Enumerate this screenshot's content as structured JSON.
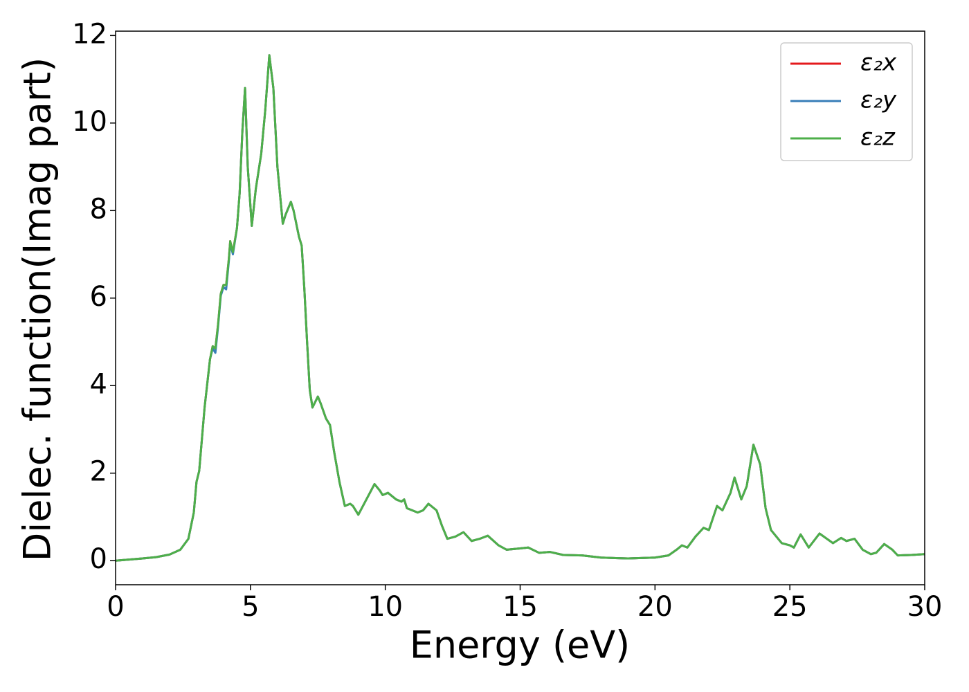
{
  "chart_data": {
    "type": "line",
    "xlabel": "Energy (eV)",
    "ylabel": "Dielec. function(Imag part)",
    "xlim": [
      0,
      30
    ],
    "xticks": [
      0,
      5,
      10,
      15,
      20,
      25,
      30
    ],
    "ylim": [
      -0.55,
      12.1
    ],
    "yticks": [
      0,
      2,
      4,
      6,
      8,
      10,
      12
    ],
    "grid": false,
    "legend": "upper right",
    "x": [
      0,
      1,
      1.5,
      2,
      2.4,
      2.7,
      2.9,
      3.0,
      3.1,
      3.3,
      3.5,
      3.6,
      3.7,
      3.8,
      3.9,
      4.0,
      4.1,
      4.2,
      4.25,
      4.35,
      4.5,
      4.6,
      4.7,
      4.8,
      4.9,
      5.05,
      5.2,
      5.4,
      5.55,
      5.7,
      5.85,
      6.0,
      6.2,
      6.3,
      6.5,
      6.6,
      6.8,
      6.9,
      7.0,
      7.1,
      7.2,
      7.3,
      7.5,
      7.6,
      7.8,
      7.95,
      8.1,
      8.3,
      8.5,
      8.7,
      8.8,
      9.0,
      9.3,
      9.6,
      9.8,
      9.9,
      10.1,
      10.4,
      10.6,
      10.7,
      10.8,
      11.0,
      11.2,
      11.4,
      11.6,
      11.9,
      12.1,
      12.3,
      12.6,
      12.9,
      13.2,
      13.5,
      13.8,
      14.2,
      14.5,
      15.0,
      15.3,
      15.7,
      16.1,
      16.6,
      17.3,
      18,
      19,
      20,
      20.5,
      20.8,
      21.0,
      21.2,
      21.5,
      21.8,
      22.0,
      22.3,
      22.5,
      22.8,
      22.95,
      23.2,
      23.4,
      23.65,
      23.9,
      24.1,
      24.3,
      24.7,
      25.0,
      25.15,
      25.4,
      25.7,
      26.1,
      26.6,
      26.9,
      27.1,
      27.4,
      27.7,
      28.0,
      28.2,
      28.5,
      28.8,
      29.0,
      29.5,
      30
    ],
    "series": [
      {
        "name": "ε₂x",
        "color": "#e41a1c",
        "values": [
          0,
          0.05,
          0.08,
          0.14,
          0.25,
          0.5,
          1.1,
          1.8,
          2.05,
          3.5,
          4.6,
          4.9,
          4.85,
          5.4,
          6.1,
          6.3,
          6.3,
          6.9,
          7.3,
          7.05,
          7.6,
          8.4,
          9.8,
          10.8,
          9.0,
          7.65,
          8.5,
          9.3,
          10.3,
          11.55,
          10.8,
          9.0,
          7.7,
          7.9,
          8.2,
          8.0,
          7.4,
          7.2,
          6.2,
          5.0,
          3.9,
          3.5,
          3.75,
          3.6,
          3.25,
          3.1,
          2.5,
          1.8,
          1.25,
          1.3,
          1.25,
          1.05,
          1.4,
          1.75,
          1.6,
          1.5,
          1.55,
          1.4,
          1.35,
          1.4,
          1.2,
          1.15,
          1.1,
          1.15,
          1.3,
          1.15,
          0.8,
          0.5,
          0.55,
          0.65,
          0.45,
          0.5,
          0.57,
          0.35,
          0.25,
          0.28,
          0.3,
          0.18,
          0.2,
          0.13,
          0.12,
          0.07,
          0.05,
          0.07,
          0.12,
          0.25,
          0.35,
          0.3,
          0.55,
          0.75,
          0.7,
          1.25,
          1.15,
          1.55,
          1.9,
          1.4,
          1.7,
          2.65,
          2.2,
          1.2,
          0.7,
          0.4,
          0.35,
          0.3,
          0.6,
          0.3,
          0.62,
          0.4,
          0.52,
          0.45,
          0.5,
          0.25,
          0.15,
          0.18,
          0.38,
          0.25,
          0.12,
          0.13,
          0.15
        ]
      },
      {
        "name": "ε₂y",
        "color": "#377eb8",
        "values": [
          0,
          0.05,
          0.08,
          0.14,
          0.25,
          0.5,
          1.1,
          1.8,
          2.05,
          3.5,
          4.6,
          4.85,
          4.75,
          5.35,
          6.05,
          6.25,
          6.2,
          6.85,
          7.25,
          7.0,
          7.6,
          8.4,
          9.8,
          10.8,
          9.0,
          7.65,
          8.5,
          9.3,
          10.3,
          11.55,
          10.8,
          9.0,
          7.7,
          7.9,
          8.2,
          8.0,
          7.4,
          7.2,
          6.2,
          5.0,
          3.9,
          3.5,
          3.75,
          3.6,
          3.25,
          3.1,
          2.5,
          1.8,
          1.25,
          1.3,
          1.25,
          1.05,
          1.4,
          1.75,
          1.6,
          1.5,
          1.55,
          1.4,
          1.35,
          1.4,
          1.2,
          1.15,
          1.1,
          1.15,
          1.3,
          1.15,
          0.8,
          0.5,
          0.55,
          0.65,
          0.45,
          0.5,
          0.57,
          0.35,
          0.25,
          0.28,
          0.3,
          0.18,
          0.2,
          0.13,
          0.12,
          0.07,
          0.05,
          0.07,
          0.12,
          0.25,
          0.35,
          0.3,
          0.55,
          0.75,
          0.7,
          1.25,
          1.15,
          1.55,
          1.9,
          1.4,
          1.7,
          2.65,
          2.2,
          1.2,
          0.7,
          0.4,
          0.35,
          0.3,
          0.6,
          0.3,
          0.62,
          0.4,
          0.52,
          0.45,
          0.5,
          0.25,
          0.15,
          0.18,
          0.38,
          0.25,
          0.12,
          0.13,
          0.15
        ]
      },
      {
        "name": "ε₂z",
        "color": "#4daf4a",
        "values": [
          0,
          0.05,
          0.08,
          0.14,
          0.25,
          0.5,
          1.1,
          1.8,
          2.05,
          3.5,
          4.6,
          4.9,
          4.85,
          5.4,
          6.1,
          6.3,
          6.3,
          6.9,
          7.3,
          7.05,
          7.6,
          8.4,
          9.8,
          10.8,
          9.0,
          7.65,
          8.5,
          9.3,
          10.3,
          11.55,
          10.8,
          9.0,
          7.7,
          7.9,
          8.2,
          8.0,
          7.4,
          7.2,
          6.2,
          5.0,
          3.9,
          3.5,
          3.75,
          3.6,
          3.25,
          3.1,
          2.5,
          1.8,
          1.25,
          1.3,
          1.25,
          1.05,
          1.4,
          1.75,
          1.6,
          1.5,
          1.55,
          1.4,
          1.35,
          1.4,
          1.2,
          1.15,
          1.1,
          1.15,
          1.3,
          1.15,
          0.8,
          0.5,
          0.55,
          0.65,
          0.45,
          0.5,
          0.57,
          0.35,
          0.25,
          0.28,
          0.3,
          0.18,
          0.2,
          0.13,
          0.12,
          0.07,
          0.05,
          0.07,
          0.12,
          0.25,
          0.35,
          0.3,
          0.55,
          0.75,
          0.7,
          1.25,
          1.15,
          1.55,
          1.9,
          1.4,
          1.7,
          2.65,
          2.2,
          1.2,
          0.7,
          0.4,
          0.35,
          0.3,
          0.6,
          0.3,
          0.62,
          0.4,
          0.52,
          0.45,
          0.5,
          0.25,
          0.15,
          0.18,
          0.38,
          0.25,
          0.12,
          0.13,
          0.15
        ]
      }
    ]
  }
}
